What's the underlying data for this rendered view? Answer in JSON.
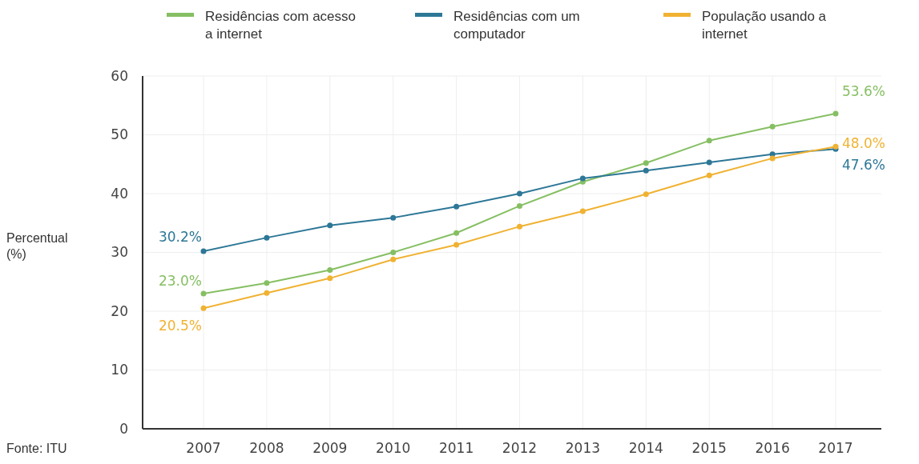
{
  "chart_data": {
    "type": "line",
    "ylabel": "Percentual (%)",
    "categories": [
      "2007",
      "2008",
      "2009",
      "2010",
      "2011",
      "2012",
      "2013",
      "2014",
      "2015",
      "2016",
      "2017"
    ],
    "series": [
      {
        "name": "Residências com acesso a internet",
        "color": "#86bf63",
        "values": [
          23.0,
          24.8,
          27.0,
          30.0,
          33.3,
          37.9,
          42.0,
          45.2,
          49.0,
          51.4,
          53.6
        ],
        "value_labels": [
          "23.0%",
          null,
          null,
          null,
          null,
          null,
          null,
          null,
          null,
          null,
          "53.6%"
        ]
      },
      {
        "name": "Residências com um computador",
        "color": "#2d7797",
        "values": [
          30.2,
          32.5,
          34.6,
          35.9,
          37.8,
          40.0,
          42.6,
          43.9,
          45.3,
          46.7,
          47.6
        ],
        "value_labels": [
          "30.2%",
          null,
          null,
          null,
          null,
          null,
          null,
          null,
          null,
          null,
          "47.6%"
        ]
      },
      {
        "name": "População usando a internet",
        "color": "#f0b232",
        "values": [
          20.5,
          23.1,
          25.6,
          28.8,
          31.3,
          34.4,
          37.0,
          39.9,
          43.1,
          46.0,
          48.0
        ],
        "value_labels": [
          "20.5%",
          null,
          null,
          null,
          null,
          null,
          null,
          null,
          null,
          null,
          "48.0%"
        ]
      }
    ],
    "ylim": [
      0,
      60
    ],
    "yticks": [
      0,
      10,
      20,
      30,
      40,
      50,
      60
    ],
    "grid": true,
    "legend": "top",
    "marker": "circle",
    "line_style": "solid",
    "annotations": [
      "Fonte: ITU"
    ]
  }
}
